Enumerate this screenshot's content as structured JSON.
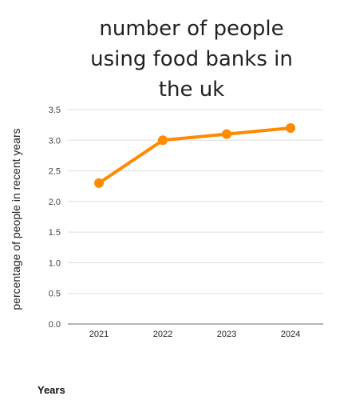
{
  "chart_data": {
    "type": "line",
    "title_lines": [
      "number of people",
      "using food banks in",
      "the uk"
    ],
    "ylabel": "percentage of people in recent years",
    "xlabel": "Years",
    "categories": [
      "2021",
      "2022",
      "2023",
      "2024"
    ],
    "values": [
      2.3,
      3.0,
      3.1,
      3.2
    ],
    "ylim": [
      0,
      3.5
    ],
    "yticks": [
      "0.0",
      "0.5",
      "1.0",
      "1.5",
      "2.0",
      "2.5",
      "3.0",
      "3.5"
    ],
    "color": "#ff8a00",
    "grid": true,
    "legend": "none"
  }
}
